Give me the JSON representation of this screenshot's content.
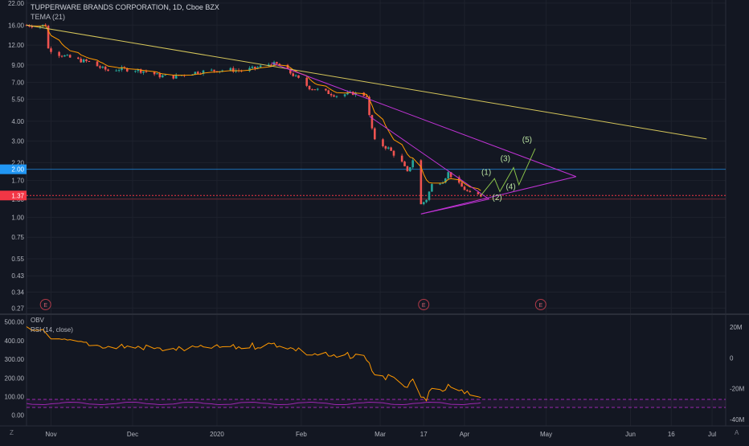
{
  "legend": {
    "title": "TUPPERWARE BRANDS CORPORATION, 1D, Cboe BZX",
    "indicator": "TEMA (21)"
  },
  "oscillator_legend": {
    "obv": "OBV",
    "rsi": "RSI (14, close)"
  },
  "price_axis": {
    "ticks": [
      "22.00",
      "16.00",
      "12.00",
      "9.00",
      "7.00",
      "5.50",
      "4.00",
      "3.00",
      "2.20",
      "1.70",
      "1.30",
      "1.00",
      "0.75",
      "0.55",
      "0.43",
      "0.34",
      "0.27"
    ],
    "tick_values": [
      22,
      16,
      12,
      9,
      7,
      5.5,
      4,
      3,
      2.2,
      1.7,
      1.3,
      1.0,
      0.75,
      0.55,
      0.43,
      0.34,
      0.27
    ],
    "badges": [
      {
        "label": "2.00",
        "value": 2.0,
        "color": "#2196f3"
      },
      {
        "label": "1.37",
        "value": 1.37,
        "color": "#f23645"
      }
    ]
  },
  "osc_axis_left": [
    "500.00",
    "400.00",
    "300.00",
    "200.00",
    "100.00",
    "0.00"
  ],
  "osc_axis_right": [
    "20M",
    "0",
    "-20M",
    "-40M"
  ],
  "time_axis": [
    "Nov",
    "Dec",
    "2020",
    "Feb",
    "Mar",
    "17",
    "Apr",
    "May",
    "Jun",
    "16",
    "Jul"
  ],
  "wave_labels": [
    "(1)",
    "(2)",
    "(3)",
    "(4)",
    "(5)"
  ],
  "earnings_marker": "E",
  "colors": {
    "background": "#131722",
    "grid": "#1e222d",
    "up": "#26a69a",
    "down": "#ef5350",
    "tema": "#ff9800",
    "trendline": "#d4c55a",
    "triangle": "#c133d6",
    "wave": "#8bc34a",
    "rsi": "#9c27b0",
    "obv": "#ff9800"
  },
  "icons": {
    "bottom_left": "tradingview-logo-icon",
    "bottom_right": "auto-scale-icon"
  },
  "chart_data": {
    "type": "candlestick",
    "title": "TUPPERWARE BRANDS CORPORATION, 1D, Cboe BZX",
    "y_scale": "log",
    "ylim": [
      0.25,
      23
    ],
    "x_range": [
      "Oct 23 2019",
      "Jul 06 2020"
    ],
    "price_series_close": [
      [
        "Oct 23",
        16.0
      ],
      [
        "Oct 25",
        15.9
      ],
      [
        "Oct 28",
        15.8
      ],
      [
        "Oct 30",
        16.1
      ],
      [
        "Oct 31",
        11.4
      ],
      [
        "Nov 04",
        10.5
      ],
      [
        "Nov 08",
        10.0
      ],
      [
        "Nov 12",
        9.6
      ],
      [
        "Nov 15",
        9.4
      ],
      [
        "Nov 19",
        8.7
      ],
      [
        "Nov 22",
        8.3
      ],
      [
        "Nov 26",
        8.5
      ],
      [
        "Dec 02",
        8.4
      ],
      [
        "Dec 06",
        8.2
      ],
      [
        "Dec 11",
        7.7
      ],
      [
        "Dec 16",
        7.6
      ],
      [
        "Dec 19",
        7.8
      ],
      [
        "Dec 24",
        8.1
      ],
      [
        "Dec 30",
        8.3
      ],
      [
        "Jan 06",
        8.4
      ],
      [
        "Jan 10",
        8.3
      ],
      [
        "Jan 15",
        8.6
      ],
      [
        "Jan 21",
        9.2
      ],
      [
        "Jan 24",
        9.0
      ],
      [
        "Jan 29",
        7.8
      ],
      [
        "Feb 04",
        6.5
      ],
      [
        "Feb 10",
        6.1
      ],
      [
        "Feb 14",
        5.8
      ],
      [
        "Feb 20",
        6.0
      ],
      [
        "Feb 25",
        5.8
      ],
      [
        "Feb 26",
        4.3
      ],
      [
        "Feb 28",
        3.0
      ],
      [
        "Mar 04",
        2.7
      ],
      [
        "Mar 09",
        2.2
      ],
      [
        "Mar 11",
        1.9
      ],
      [
        "Mar 13",
        2.3
      ],
      [
        "Mar 16",
        1.2
      ],
      [
        "Mar 18",
        1.3
      ],
      [
        "Mar 20",
        1.6
      ],
      [
        "Mar 24",
        1.7
      ],
      [
        "Mar 26",
        1.9
      ],
      [
        "Mar 30",
        1.6
      ],
      [
        "Apr 01",
        1.5
      ],
      [
        "Apr 03",
        1.4
      ],
      [
        "Apr 07",
        1.37
      ]
    ],
    "tema_21": "orange smoothing line following price",
    "drawings": {
      "long_trendline": {
        "from": [
          "Oct 23",
          16.0
        ],
        "to": [
          "Jun 29",
          3.1
        ]
      },
      "triangle_upper": {
        "from": [
          "Jan 21",
          9.3
        ],
        "to": [
          "May 12",
          1.8
        ]
      },
      "triangle_lower": {
        "from": [
          "Mar 16",
          1.05
        ],
        "to": [
          "May 12",
          1.8
        ]
      },
      "inner_wedge_upper": {
        "from": [
          "Feb 26",
          4.3
        ],
        "to": [
          "Apr 10",
          1.3
        ]
      },
      "inner_wedge_lower": {
        "from": [
          "Mar 16",
          1.05
        ],
        "to": [
          "Apr 10",
          1.3
        ]
      },
      "horizontal_level": 2.0,
      "last_price_level": 1.37
    },
    "earnings_dates": [
      "Oct 30",
      "Mar 17",
      "Apr 29"
    ],
    "rsi": {
      "levels": [
        70,
        30
      ]
    },
    "obv_range": [
      -40,
      20
    ]
  }
}
